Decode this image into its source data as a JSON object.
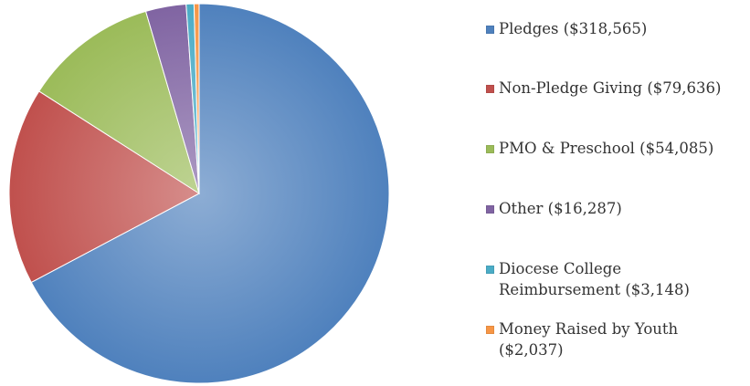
{
  "chart_data": {
    "type": "pie",
    "title": "",
    "categories": [
      "Pledges",
      "Non-Pledge Giving",
      "PMO & Preschool",
      "Other",
      "Diocese College Reimbursement",
      "Money Raised by Youth"
    ],
    "values": [
      318565,
      79636,
      54085,
      16287,
      3148,
      2037
    ],
    "colors": [
      "#4f81bd",
      "#c0504d",
      "#9bbb59",
      "#8064a2",
      "#4bacc6",
      "#f79646"
    ],
    "start": "12 o'clock",
    "direction": "clockwise",
    "legend": {
      "position": "right",
      "labels": [
        "Pledges ($318,565)",
        "Non-Pledge Giving ($79,636)",
        "PMO & Preschool ($54,085)",
        "Other ($16,287)",
        "Diocese College\nReimbursement ($3,148)",
        "Money Raised by Youth\n($2,037)"
      ]
    }
  }
}
